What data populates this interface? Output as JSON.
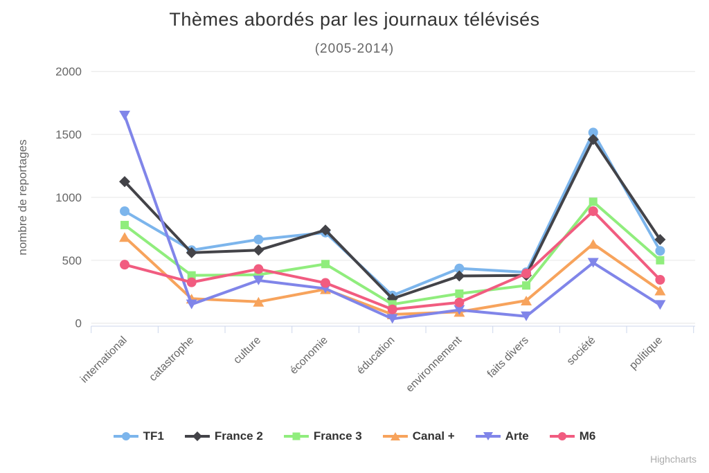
{
  "chart_data": {
    "type": "line",
    "title": "Thèmes abordés par les journaux télévisés",
    "subtitle": "(2005-2014)",
    "xlabel": "",
    "ylabel": "nombre de reportages",
    "ylim": [
      0,
      2000
    ],
    "yticks": [
      0,
      500,
      1000,
      1500,
      2000
    ],
    "grid": true,
    "legend_position": "bottom",
    "credits": "Highcharts",
    "categories": [
      "international",
      "catastrophe",
      "culture",
      "économie",
      "éducation",
      "environnement",
      "faits divers",
      "société",
      "politique"
    ],
    "series": [
      {
        "name": "TF1",
        "color": "#7cb5ec",
        "marker": "circle",
        "values": [
          890,
          580,
          665,
          720,
          220,
          435,
          405,
          1515,
          575
        ]
      },
      {
        "name": "France 2",
        "color": "#434348",
        "marker": "diamond",
        "values": [
          1125,
          560,
          580,
          740,
          195,
          375,
          380,
          1460,
          665
        ]
      },
      {
        "name": "France 3",
        "color": "#90ed7d",
        "marker": "square",
        "values": [
          780,
          380,
          385,
          470,
          150,
          235,
          300,
          965,
          500
        ]
      },
      {
        "name": "Canal +",
        "color": "#f7a35c",
        "marker": "triangle",
        "values": [
          685,
          195,
          170,
          270,
          70,
          90,
          180,
          630,
          260
        ]
      },
      {
        "name": "Arte",
        "color": "#8085e9",
        "marker": "triangle-down",
        "values": [
          1650,
          150,
          340,
          275,
          35,
          105,
          55,
          480,
          145
        ]
      },
      {
        "name": "M6",
        "color": "#f15c80",
        "marker": "circle",
        "values": [
          465,
          325,
          430,
          320,
          110,
          165,
          395,
          890,
          345
        ]
      }
    ],
    "axis_colors": {
      "grid": "#e6e6e6",
      "axis_line": "#ccd6eb",
      "label": "#666666"
    }
  }
}
